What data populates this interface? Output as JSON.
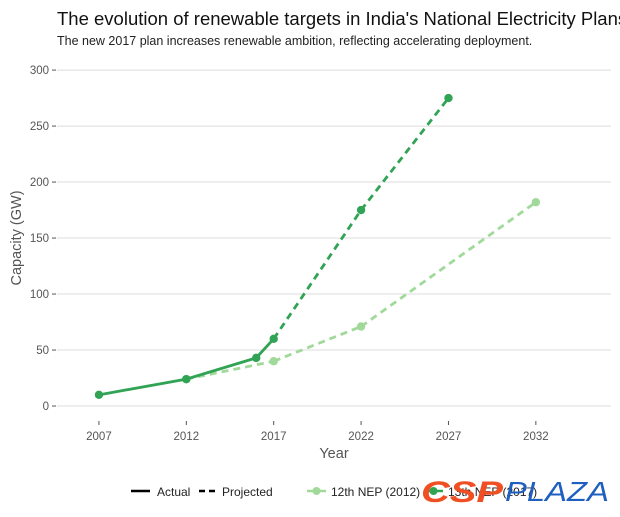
{
  "chart_data": {
    "type": "line",
    "title": "The evolution of renewable targets in India's National Electricity Plans",
    "subtitle": "The new 2017 plan increases renewable ambition, reflecting accelerating deployment.",
    "xlabel": "Year",
    "ylabel": "Capacity (GW)",
    "x_ticks": [
      2007,
      2012,
      2017,
      2022,
      2027,
      2032
    ],
    "y_ticks": [
      0,
      50,
      100,
      150,
      200,
      250,
      300
    ],
    "xlim": [
      2004.6,
      2036.3
    ],
    "ylim": [
      -10.7,
      309
    ],
    "grid": "horizontal",
    "legend_position": "bottom",
    "series": [
      {
        "name": "12th NEP (2012)",
        "color": "#a1d99b",
        "points": [
          {
            "x": 2012,
            "y": 24,
            "style": "projected"
          },
          {
            "x": 2017,
            "y": 40,
            "style": "projected"
          },
          {
            "x": 2022,
            "y": 71,
            "style": "projected"
          },
          {
            "x": 2032,
            "y": 182,
            "style": "projected"
          }
        ]
      },
      {
        "name": "13th NEP (2017)",
        "color": "#31a354",
        "points": [
          {
            "x": 2007,
            "y": 10,
            "style": "actual"
          },
          {
            "x": 2012,
            "y": 24,
            "style": "actual"
          },
          {
            "x": 2016,
            "y": 43,
            "style": "actual"
          },
          {
            "x": 2017,
            "y": 60,
            "style": "actual"
          },
          {
            "x": 2022,
            "y": 175,
            "style": "projected"
          },
          {
            "x": 2027,
            "y": 275,
            "style": "projected"
          }
        ]
      }
    ],
    "legend": {
      "linetype": [
        {
          "label": "Actual",
          "style": "solid"
        },
        {
          "label": "Projected",
          "style": "dashed"
        }
      ],
      "series": [
        {
          "label": "12th NEP (2012)",
          "color": "#a1d99b"
        },
        {
          "label": "13th NEP (2017)",
          "color": "#31a354"
        }
      ]
    }
  },
  "watermark": {
    "part1": "CSP",
    "part2": "PLAZA",
    "color1": "#f04e23",
    "color2": "#1e5fbf"
  }
}
